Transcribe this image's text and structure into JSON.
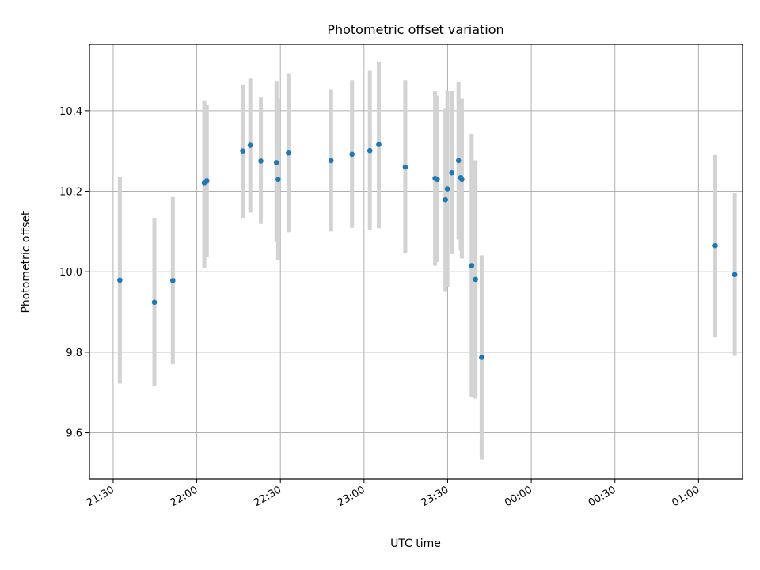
{
  "chart_data": {
    "type": "scatter",
    "title": "Photometric offset variation",
    "xlabel": "UTC time",
    "ylabel": "Photometric offset",
    "grid": true,
    "x_unit": "minutes since 21:00 UTC",
    "xlim": [
      21.5,
      255.8
    ],
    "ylim": [
      9.485,
      10.565
    ],
    "x_ticks": [
      {
        "value": 30,
        "label": "21:30"
      },
      {
        "value": 60,
        "label": "22:00"
      },
      {
        "value": 90,
        "label": "22:30"
      },
      {
        "value": 120,
        "label": "23:00"
      },
      {
        "value": 150,
        "label": "23:30"
      },
      {
        "value": 180,
        "label": "00:00"
      },
      {
        "value": 210,
        "label": "00:30"
      },
      {
        "value": 240,
        "label": "01:00"
      }
    ],
    "y_ticks": [
      {
        "value": 9.6,
        "label": "9.6"
      },
      {
        "value": 9.8,
        "label": "9.8"
      },
      {
        "value": 10.0,
        "label": "10.0"
      },
      {
        "value": 10.2,
        "label": "10.2"
      },
      {
        "value": 10.4,
        "label": "10.4"
      }
    ],
    "series": [
      {
        "name": "offset",
        "color": "#1f77b4",
        "errorbar_color": "#d3d3d3",
        "points": [
          {
            "x": 32.4,
            "y": 9.979,
            "lo": 9.722,
            "hi": 10.235
          },
          {
            "x": 44.8,
            "y": 9.924,
            "lo": 9.716,
            "hi": 10.132
          },
          {
            "x": 51.4,
            "y": 9.978,
            "lo": 9.77,
            "hi": 10.186
          },
          {
            "x": 62.7,
            "y": 10.22,
            "lo": 10.01,
            "hi": 10.426
          },
          {
            "x": 63.6,
            "y": 10.226,
            "lo": 10.037,
            "hi": 10.414
          },
          {
            "x": 76.5,
            "y": 10.3,
            "lo": 10.134,
            "hi": 10.465
          },
          {
            "x": 79.2,
            "y": 10.314,
            "lo": 10.147,
            "hi": 10.48
          },
          {
            "x": 83.0,
            "y": 10.275,
            "lo": 10.119,
            "hi": 10.433
          },
          {
            "x": 88.6,
            "y": 10.271,
            "lo": 10.073,
            "hi": 10.474
          },
          {
            "x": 89.2,
            "y": 10.229,
            "lo": 10.028,
            "hi": 10.43
          },
          {
            "x": 92.9,
            "y": 10.295,
            "lo": 10.098,
            "hi": 10.493
          },
          {
            "x": 108.2,
            "y": 10.276,
            "lo": 10.1,
            "hi": 10.452
          },
          {
            "x": 115.7,
            "y": 10.292,
            "lo": 10.109,
            "hi": 10.476
          },
          {
            "x": 122.1,
            "y": 10.301,
            "lo": 10.104,
            "hi": 10.499
          },
          {
            "x": 125.3,
            "y": 10.316,
            "lo": 10.108,
            "hi": 10.522
          },
          {
            "x": 134.8,
            "y": 10.26,
            "lo": 10.047,
            "hi": 10.476
          },
          {
            "x": 145.5,
            "y": 10.232,
            "lo": 10.015,
            "hi": 10.449
          },
          {
            "x": 146.3,
            "y": 10.229,
            "lo": 10.024,
            "hi": 10.438
          },
          {
            "x": 149.2,
            "y": 10.179,
            "lo": 9.95,
            "hi": 10.405
          },
          {
            "x": 149.9,
            "y": 10.206,
            "lo": 9.962,
            "hi": 10.449
          },
          {
            "x": 151.5,
            "y": 10.246,
            "lo": 10.044,
            "hi": 10.449
          },
          {
            "x": 153.9,
            "y": 10.276,
            "lo": 10.08,
            "hi": 10.471
          },
          {
            "x": 154.7,
            "y": 10.234,
            "lo": 10.052,
            "hi": 10.415
          },
          {
            "x": 155.1,
            "y": 10.229,
            "lo": 10.033,
            "hi": 10.43
          },
          {
            "x": 158.6,
            "y": 10.015,
            "lo": 9.688,
            "hi": 10.343
          },
          {
            "x": 160.0,
            "y": 9.981,
            "lo": 9.685,
            "hi": 10.277
          },
          {
            "x": 162.2,
            "y": 9.787,
            "lo": 9.533,
            "hi": 10.041
          },
          {
            "x": 246.0,
            "y": 10.065,
            "lo": 9.837,
            "hi": 10.29
          },
          {
            "x": 253.0,
            "y": 9.993,
            "lo": 9.791,
            "hi": 10.195
          }
        ]
      }
    ]
  }
}
